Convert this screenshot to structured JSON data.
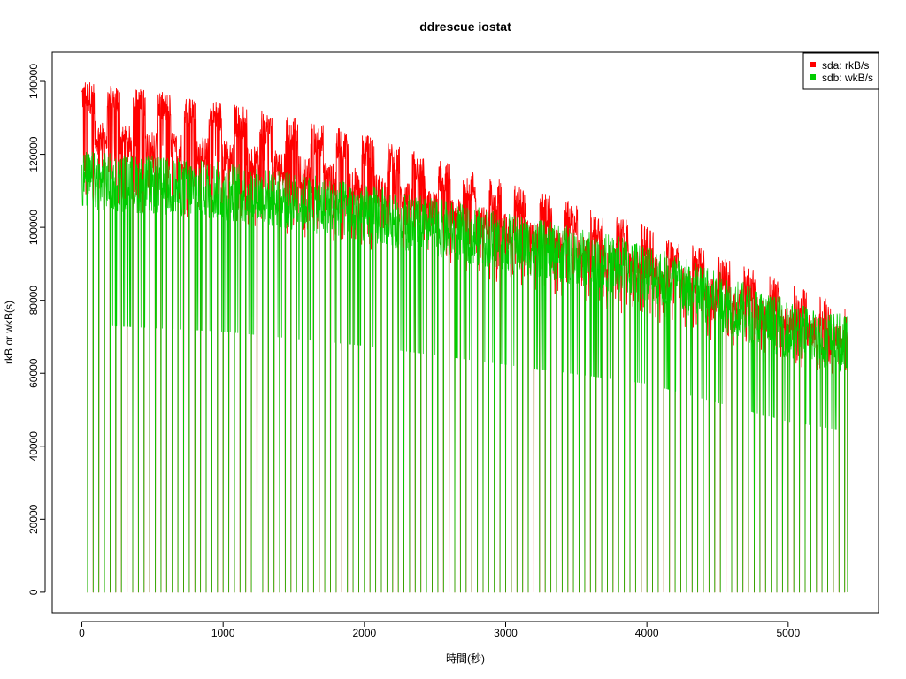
{
  "chart_data": {
    "type": "line",
    "title": "ddrescue iostat",
    "xlabel": "時間(秒)",
    "ylabel": "rkB or wkB(s)",
    "xlim": [
      -210,
      5640
    ],
    "ylim": [
      -5600,
      148000
    ],
    "xticks": [
      0,
      1000,
      2000,
      3000,
      4000,
      5000
    ],
    "yticks": [
      0,
      20000,
      40000,
      60000,
      80000,
      100000,
      120000,
      140000
    ],
    "grid": false,
    "legend": {
      "placement": "top-right"
    },
    "series": [
      {
        "name": "sda: rkB/s",
        "color": "#ff0000",
        "trend_x": [
          0,
          1000,
          2000,
          3000,
          4000,
          5000,
          5420
        ],
        "trend_y": [
          136000,
          130000,
          121000,
          108000,
          96000,
          80000,
          74000
        ],
        "dip_period_s": 40,
        "end_x": 5420
      },
      {
        "name": "sdb: wkB/s",
        "color": "#00cc00",
        "trend_x": [
          0,
          1000,
          2000,
          3000,
          4000,
          5000,
          5420
        ],
        "trend_y": [
          113000,
          110000,
          104000,
          96000,
          88000,
          72000,
          68000
        ],
        "dip_period_s": 40,
        "end_x": 5420
      }
    ]
  }
}
